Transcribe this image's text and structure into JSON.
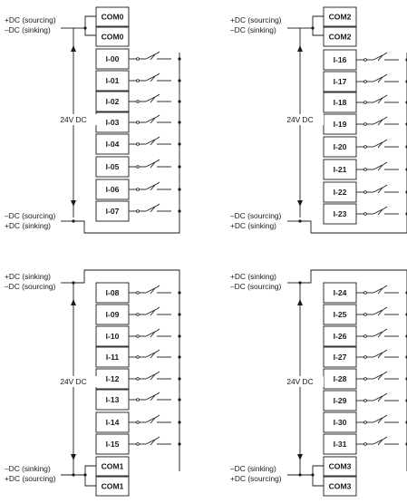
{
  "colors": {
    "line": "#1a1a1a",
    "background": "#ffffff"
  },
  "groups": [
    {
      "id": "g0",
      "supply_label": "24V DC",
      "top_labels": [
        "+DC (sourcing)",
        "–DC (sinking)"
      ],
      "bottom_labels": [
        "–DC (sourcing)",
        "+DC (sinking)"
      ],
      "top_terminals": [
        "COM0",
        "COM0"
      ],
      "bottom_terminals": [],
      "inputs": [
        "I-00",
        "I-01",
        "I-02",
        "I-03",
        "I-04",
        "I-05",
        "I-06",
        "I-07"
      ]
    },
    {
      "id": "g1",
      "supply_label": "24V DC",
      "top_labels": [
        "+DC (sourcing)",
        "–DC (sinking)"
      ],
      "bottom_labels": [
        "–DC (sourcing)",
        "+DC (sinking)"
      ],
      "top_terminals": [
        "COM2",
        "COM2"
      ],
      "bottom_terminals": [],
      "inputs": [
        "I-16",
        "I-17",
        "I-18",
        "I-19",
        "I-20",
        "I-21",
        "I-22",
        "I-23"
      ]
    },
    {
      "id": "g2",
      "supply_label": "24V DC",
      "top_labels": [
        "+DC (sinking)",
        "–DC (sourcing)"
      ],
      "bottom_labels": [
        "–DC (sinking)",
        "+DC (sourcing)"
      ],
      "top_terminals": [],
      "bottom_terminals": [
        "COM1",
        "COM1"
      ],
      "inputs": [
        "I-08",
        "I-09",
        "I-10",
        "I-11",
        "I-12",
        "I-13",
        "I-14",
        "I-15"
      ]
    },
    {
      "id": "g3",
      "supply_label": "24V DC",
      "top_labels": [
        "+DC (sinking)",
        "–DC (sourcing)"
      ],
      "bottom_labels": [
        "–DC (sinking)",
        "+DC (sourcing)"
      ],
      "top_terminals": [],
      "bottom_terminals": [
        "COM3",
        "COM3"
      ],
      "inputs": [
        "I-24",
        "I-25",
        "I-26",
        "I-27",
        "I-28",
        "I-29",
        "I-30",
        "I-31"
      ]
    }
  ]
}
